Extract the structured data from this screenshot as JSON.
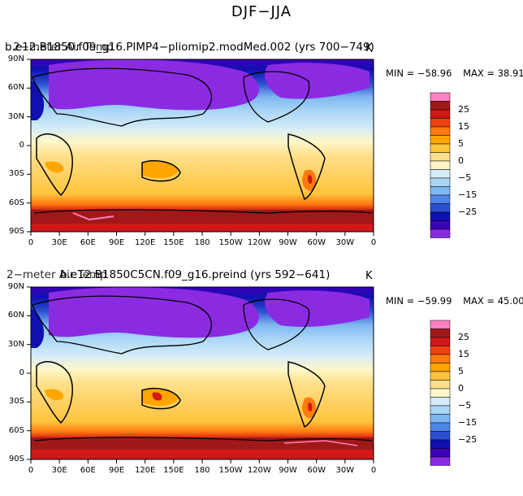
{
  "figure": {
    "title": "DJF−JJA"
  },
  "colors": {
    "levels": [
      "#8a2be2",
      "#3a00b8",
      "#1010b0",
      "#2a50d0",
      "#4f86e6",
      "#7fb7f0",
      "#aad6f5",
      "#d5ecf8",
      "#fff7c8",
      "#ffe08a",
      "#ffc53d",
      "#ffa500",
      "#ff7a10",
      "#f04010",
      "#d01818",
      "#a01818",
      "#ff80c0"
    ],
    "land_outline": "#000000"
  },
  "colorbar": {
    "labels": [
      "25",
      "15",
      "5",
      "0",
      "−5",
      "−15",
      "−25"
    ]
  },
  "axes": {
    "x_ticks": [
      "0",
      "30E",
      "60E",
      "90E",
      "120E",
      "150E",
      "180",
      "150W",
      "120W",
      "90W",
      "60W",
      "30W",
      "0"
    ],
    "y_ticks": [
      "90N",
      "60N",
      "30N",
      "0",
      "30S",
      "60S",
      "90S"
    ]
  },
  "panels": [
    {
      "title": "b.e12.B1850.f09_g16.PIMP4−pliomip2.modMed.002 (yrs 700−749)",
      "overlay_title": "2−meter Air Temp",
      "units": "K",
      "min_label": "MIN = −58.96",
      "max_label": "MAX =  38.91"
    },
    {
      "title": "b.e12.B1850C5CN.f09_g16.preind (yrs 592−641)",
      "overlay_title": "2−meter Air Temp",
      "units": "K",
      "min_label": "MIN = −59.99",
      "max_label": "MAX =  45.00"
    }
  ]
}
